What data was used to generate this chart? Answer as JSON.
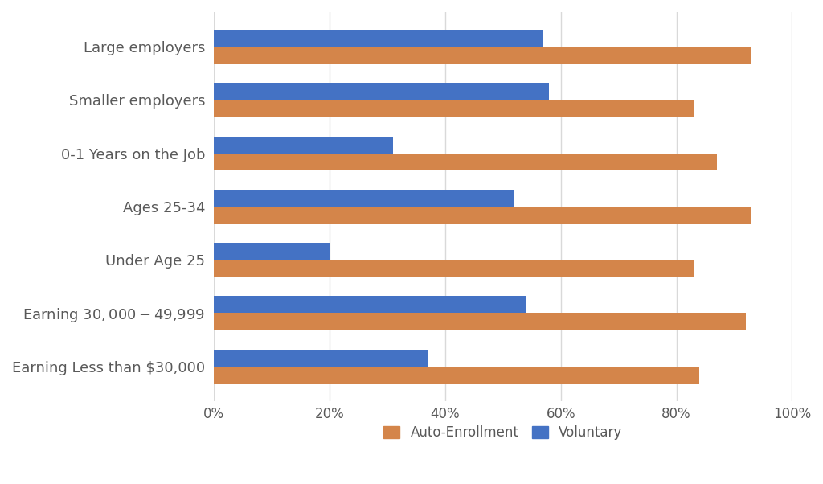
{
  "categories": [
    "Large employers",
    "Smaller employers",
    "0-1 Years on the Job",
    "Ages 25-34",
    "Under Age 25",
    "Earning $30,000 - $49,999",
    "Earning Less than $30,000"
  ],
  "auto_enrollment": [
    0.93,
    0.83,
    0.87,
    0.93,
    0.83,
    0.92,
    0.84
  ],
  "voluntary": [
    0.57,
    0.58,
    0.31,
    0.52,
    0.2,
    0.54,
    0.37
  ],
  "auto_color": "#D4854A",
  "voluntary_color": "#4472C4",
  "background_color": "#FFFFFF",
  "xlim": [
    0,
    1.0
  ],
  "xtick_labels": [
    "0%",
    "20%",
    "40%",
    "60%",
    "80%",
    "100%"
  ],
  "xtick_values": [
    0.0,
    0.2,
    0.4,
    0.6,
    0.8,
    1.0
  ],
  "legend_auto": "Auto-Enrollment",
  "legend_voluntary": "Voluntary",
  "bar_height": 0.32,
  "label_fontsize": 13,
  "tick_fontsize": 12,
  "legend_fontsize": 12,
  "label_color": "#595959",
  "grid_color": "#D9D9D9",
  "grid_linewidth": 1.0
}
